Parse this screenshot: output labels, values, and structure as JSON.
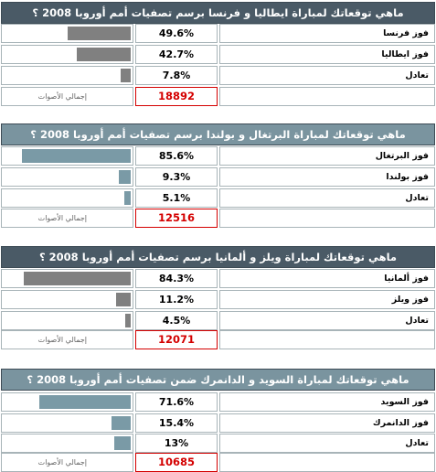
{
  "total_label": "إجمالي الأصوات",
  "polls": [
    {
      "title": "ماهي توقعاتك لمباراة ايطاليا و فرنسا برسم تصفيات أمم أوروبا 2008 ؟",
      "title_bg": "#4a5a66",
      "bar_color": "#808080",
      "options": [
        {
          "label": "فوز فرنسا",
          "pct_text": "49.6%",
          "pct": 49.6
        },
        {
          "label": "فوز ايطاليا",
          "pct_text": "42.7%",
          "pct": 42.7
        },
        {
          "label": "تعادل",
          "pct_text": "7.8%",
          "pct": 7.8
        }
      ],
      "total": "18892"
    },
    {
      "title": "ماهي توقعاتك لمباراة البرتغال و بولندا برسم تصفيات أمم أوروبا 2008 ؟",
      "title_bg": "#7a949f",
      "bar_color": "#7a9aa6",
      "options": [
        {
          "label": "فوز البرتغال",
          "pct_text": "85.6%",
          "pct": 85.6
        },
        {
          "label": "فوز بولندا",
          "pct_text": "9.3%",
          "pct": 9.3
        },
        {
          "label": "تعادل",
          "pct_text": "5.1%",
          "pct": 5.1
        }
      ],
      "total": "12516"
    },
    {
      "title": "ماهي توقعاتك لمباراة ويلز و ألمانيا برسم تصفيات أمم أوروبا 2008 ؟",
      "title_bg": "#4a5a66",
      "bar_color": "#808080",
      "options": [
        {
          "label": "فوز ألمانيا",
          "pct_text": "84.3%",
          "pct": 84.3
        },
        {
          "label": "فوز ويلز",
          "pct_text": "11.2%",
          "pct": 11.2
        },
        {
          "label": "تعادل",
          "pct_text": "4.5%",
          "pct": 4.5
        }
      ],
      "total": "12071"
    },
    {
      "title": "ماهي توقعاتك لمباراة السويد و الدانمرك ضمن تصفيات أمم أوروبا 2008 ؟",
      "title_bg": "#7a949f",
      "bar_color": "#7a9aa6",
      "options": [
        {
          "label": "فوز السويد",
          "pct_text": "71.6%",
          "pct": 71.6
        },
        {
          "label": "فوز الدانمرك",
          "pct_text": "15.4%",
          "pct": 15.4
        },
        {
          "label": "تعادل",
          "pct_text": "13%",
          "pct": 13
        }
      ],
      "total": "10685"
    }
  ]
}
